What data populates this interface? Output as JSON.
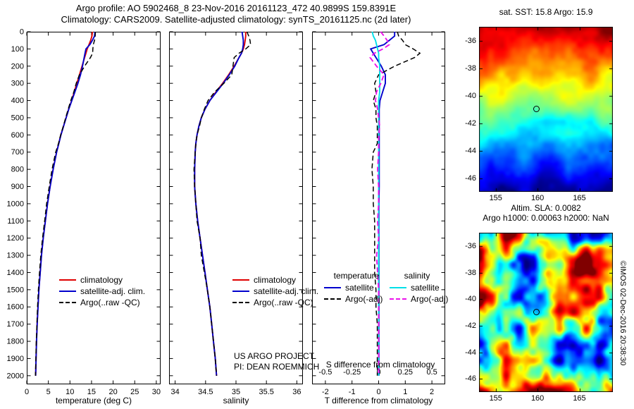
{
  "header": {
    "title_line1": "Argo profile: AO 5902468_8 23-Nov-2016 20161123_472 40.9899S 159.8391E",
    "title_line2": "Climatology: CARS2009. Satellite-adjusted climatology: synTS_20161125.nc (2d later)"
  },
  "footer": {
    "copyright": "©IMOS 02-Dec-2016 20:38:30"
  },
  "colors": {
    "climatology": "#e00000",
    "satellite_adj": "#0000cd",
    "argo_raw": "#000000",
    "satellite_salinity": "#00dfe8",
    "argo_salinity": "#eb12eb",
    "axis": "#000000",
    "background": "#ffffff"
  },
  "chart_data": [
    {
      "type": "line",
      "title": "",
      "xlabel": "temperature (deg C)",
      "ylabel": "",
      "xlim": [
        0,
        31
      ],
      "ylim": [
        0,
        2050
      ],
      "xticks": [
        0,
        5,
        10,
        15,
        20,
        25,
        30
      ],
      "yticks": [
        0,
        100,
        200,
        300,
        400,
        500,
        600,
        700,
        800,
        900,
        1000,
        1100,
        1200,
        1300,
        1400,
        1500,
        1600,
        1700,
        1800,
        1900,
        2000
      ],
      "show_ytick_labels": true,
      "grid": false,
      "legend_position": "mid-left",
      "depths": [
        0,
        25,
        50,
        75,
        100,
        125,
        150,
        200,
        250,
        300,
        350,
        400,
        450,
        500,
        550,
        600,
        650,
        700,
        800,
        900,
        1000,
        1100,
        1200,
        1300,
        1400,
        1500,
        1600,
        1700,
        1800,
        1900,
        2000
      ],
      "series": [
        {
          "name": "climatology",
          "color": "#e00000",
          "dash": false,
          "values": [
            15.2,
            15.1,
            14.8,
            14.4,
            14.0,
            13.7,
            13.4,
            12.8,
            12.2,
            11.6,
            11.0,
            10.4,
            9.7,
            9.1,
            8.5,
            7.9,
            7.4,
            6.9,
            6.1,
            5.4,
            4.8,
            4.3,
            3.8,
            3.4,
            3.1,
            2.8,
            2.6,
            2.4,
            2.25,
            2.15,
            2.05
          ]
        },
        {
          "name": "satellite-adj. clim.",
          "color": "#0000cd",
          "dash": false,
          "values": [
            15.8,
            15.7,
            15.2,
            14.6,
            13.7,
            13.5,
            13.3,
            12.9,
            12.45,
            11.85,
            11.15,
            10.45,
            9.72,
            9.12,
            8.52,
            7.92,
            7.42,
            6.92,
            6.12,
            5.42,
            4.81,
            4.31,
            3.81,
            3.41,
            3.11,
            2.81,
            2.61,
            2.41,
            2.26,
            2.16,
            2.06
          ]
        },
        {
          "name": "Argo(..raw -QC)",
          "color": "#000000",
          "dash": true,
          "values": [
            15.9,
            15.85,
            15.7,
            15.4,
            15.3,
            15.25,
            14.75,
            13.4,
            12.2,
            11.45,
            10.9,
            10.2,
            9.6,
            9.0,
            8.45,
            7.85,
            7.35,
            6.7,
            5.85,
            5.2,
            4.6,
            4.15,
            3.65,
            3.25,
            2.95,
            2.7,
            2.5,
            2.35,
            2.2,
            2.1,
            2.0
          ]
        }
      ]
    },
    {
      "type": "line",
      "title": "",
      "xlabel": "salinity",
      "ylabel": "",
      "xlim": [
        33.9,
        36.1
      ],
      "ylim": [
        0,
        2050
      ],
      "xticks": [
        34,
        34.5,
        35,
        35.5,
        36
      ],
      "yticks": [
        0,
        100,
        200,
        300,
        400,
        500,
        600,
        700,
        800,
        900,
        1000,
        1100,
        1200,
        1300,
        1400,
        1500,
        1600,
        1700,
        1800,
        1900,
        2000
      ],
      "show_ytick_labels": false,
      "grid": false,
      "annotations": [
        "US ARGO PROJECT",
        "PI: DEAN ROEMMICH"
      ],
      "depths": [
        0,
        25,
        50,
        75,
        100,
        125,
        150,
        200,
        250,
        300,
        350,
        400,
        450,
        500,
        550,
        600,
        650,
        700,
        800,
        900,
        1000,
        1100,
        1200,
        1300,
        1400,
        1500,
        1600,
        1700,
        1800,
        1900,
        2000
      ],
      "series": [
        {
          "name": "climatology",
          "color": "#e00000",
          "dash": false,
          "values": [
            35.16,
            35.16,
            35.15,
            35.14,
            35.12,
            35.09,
            35.05,
            34.97,
            34.88,
            34.78,
            34.67,
            34.57,
            34.49,
            34.43,
            34.39,
            34.36,
            34.34,
            34.33,
            34.32,
            34.32,
            34.34,
            34.37,
            34.41,
            34.45,
            34.49,
            34.53,
            34.57,
            34.6,
            34.63,
            34.66,
            34.68
          ]
        },
        {
          "name": "satellite-adj. clim.",
          "color": "#0000cd",
          "dash": false,
          "values": [
            35.1,
            35.11,
            35.12,
            35.12,
            35.11,
            35.09,
            35.05,
            34.98,
            34.89,
            34.79,
            34.68,
            34.57,
            34.49,
            34.43,
            34.39,
            34.36,
            34.34,
            34.33,
            34.32,
            34.32,
            34.34,
            34.37,
            34.41,
            34.45,
            34.49,
            34.53,
            34.57,
            34.6,
            34.63,
            34.66,
            34.68
          ]
        },
        {
          "name": "Argo(..raw -QC)",
          "color": "#000000",
          "dash": true,
          "values": [
            35.18,
            35.21,
            35.23,
            35.24,
            35.16,
            35.05,
            34.97,
            34.95,
            34.93,
            34.8,
            34.65,
            34.54,
            34.48,
            34.43,
            34.4,
            34.36,
            34.34,
            34.33,
            34.31,
            34.32,
            34.34,
            34.36,
            34.41,
            34.43,
            34.48,
            34.53,
            34.57,
            34.6,
            34.63,
            34.66,
            34.68
          ]
        }
      ]
    },
    {
      "type": "line",
      "title": "",
      "xlabel": "T difference from climatology",
      "x2label": "S difference from climatology",
      "ylabel": "",
      "xlim": [
        -2.5,
        2.5
      ],
      "x2lim": [
        -0.625,
        0.625
      ],
      "ylim": [
        0,
        2050
      ],
      "xticks": [
        -2,
        -1,
        0,
        1,
        2
      ],
      "x2ticks": [
        -0.5,
        -0.25,
        0,
        0.25,
        0.5
      ],
      "yticks": [
        0,
        100,
        200,
        300,
        400,
        500,
        600,
        700,
        800,
        900,
        1000,
        1100,
        1200,
        1300,
        1400,
        1500,
        1600,
        1700,
        1800,
        1900,
        2000
      ],
      "show_ytick_labels": false,
      "grid": false,
      "legend_headers": [
        "temperature",
        "salinity"
      ],
      "depths": [
        0,
        25,
        50,
        75,
        100,
        125,
        150,
        200,
        250,
        300,
        350,
        400,
        450,
        500,
        550,
        600,
        650,
        700,
        800,
        900,
        1000,
        1100,
        1200,
        1300,
        1400,
        1500,
        1600,
        1700,
        1800,
        1900,
        2000
      ],
      "series": [
        {
          "name": "satellite",
          "color": "#0000cd",
          "dash": false,
          "axis": "x1",
          "values": [
            0.6,
            0.6,
            0.4,
            0.2,
            -0.3,
            -0.2,
            -0.1,
            0.1,
            0.25,
            0.25,
            0.15,
            0.05,
            0.02,
            0.02,
            0.02,
            0.02,
            0.02,
            0.02,
            0.02,
            0.02,
            0.01,
            0.01,
            0.01,
            0.01,
            0.01,
            0.01,
            0.01,
            0.01,
            0.01,
            0.01,
            0.01
          ]
        },
        {
          "name": "Argo(-adj)",
          "color": "#000000",
          "dash": true,
          "axis": "x1",
          "values": [
            0.7,
            0.75,
            0.9,
            1.0,
            1.3,
            1.55,
            1.35,
            0.6,
            0.0,
            -0.15,
            -0.1,
            -0.2,
            -0.1,
            -0.1,
            -0.05,
            -0.05,
            -0.05,
            -0.2,
            -0.25,
            -0.2,
            -0.2,
            -0.15,
            -0.15,
            -0.15,
            -0.15,
            -0.1,
            -0.1,
            -0.05,
            -0.05,
            -0.05,
            -0.05
          ]
        },
        {
          "name": "satellite",
          "color": "#00dfe8",
          "dash": false,
          "axis": "x2",
          "values": [
            -0.06,
            -0.05,
            -0.03,
            -0.02,
            -0.01,
            0,
            0,
            0.01,
            0.01,
            0.01,
            0.01,
            0,
            0,
            0,
            0,
            0,
            0,
            0,
            0,
            0,
            0,
            0,
            0,
            0,
            0,
            0,
            0,
            0,
            0,
            0,
            0
          ]
        },
        {
          "name": "Argo(-adj)",
          "color": "#eb12eb",
          "dash": true,
          "axis": "x2",
          "values": [
            0.02,
            0.05,
            0.08,
            0.1,
            0.04,
            -0.04,
            -0.08,
            -0.02,
            0.05,
            0.02,
            -0.02,
            -0.03,
            -0.01,
            0,
            0.01,
            0,
            0,
            0,
            -0.01,
            0,
            0,
            -0.01,
            0,
            -0.02,
            -0.01,
            0,
            0,
            0,
            0,
            0,
            0
          ]
        }
      ]
    },
    {
      "type": "heatmap",
      "name": "sst-map",
      "title": "sat. SST: 15.8 Argo: 15.9",
      "field": "sst",
      "palette": "jet",
      "lon_range": [
        153,
        169
      ],
      "lat_range": [
        -35,
        -47
      ],
      "xticks": [
        155,
        160,
        165
      ],
      "yticks": [
        -36,
        -38,
        -40,
        -42,
        -44,
        -46
      ],
      "marker": {
        "lon": 159.8391,
        "lat": -40.9899
      }
    },
    {
      "type": "heatmap",
      "name": "sla-map",
      "title": "Altim. SLA: 0.0082",
      "title2": "Argo h1000: 0.00063 h2000: NaN",
      "field": "sla",
      "palette": "jet",
      "lon_range": [
        153,
        169
      ],
      "lat_range": [
        -35,
        -47
      ],
      "xticks": [
        155,
        160,
        165
      ],
      "yticks": [
        -36,
        -38,
        -40,
        -42,
        -44,
        -46
      ],
      "marker": {
        "lon": 159.8391,
        "lat": -40.9899
      }
    }
  ]
}
